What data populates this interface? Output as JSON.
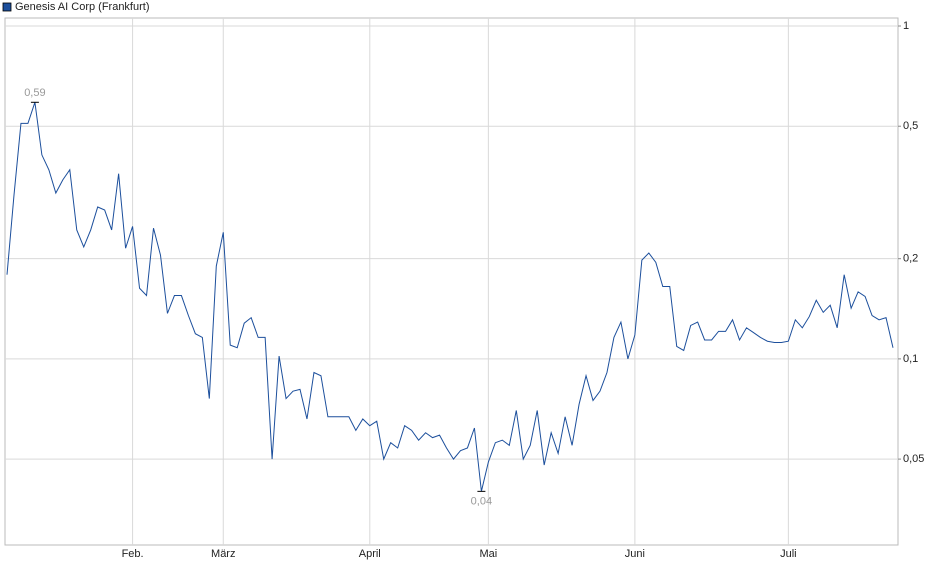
{
  "chart_data": {
    "type": "line",
    "log_scale": true,
    "grid": true,
    "legend": "top-left",
    "ylim": [
      0.0276,
      1.057
    ],
    "yticks": [
      1,
      {
        "value": 0.5,
        "label": "0,5"
      },
      {
        "value": 0.2,
        "label": "0,2"
      },
      {
        "value": 0.1,
        "label": "0,1"
      },
      {
        "value": 0.05,
        "label": "0,05"
      }
    ],
    "categories": [
      null,
      null,
      null,
      null,
      null,
      null,
      null,
      null,
      null,
      null,
      null,
      null,
      null,
      null,
      null,
      null,
      null,
      null,
      "Feb.",
      null,
      null,
      null,
      null,
      null,
      null,
      null,
      null,
      null,
      null,
      null,
      null,
      "März",
      null,
      null,
      null,
      null,
      null,
      null,
      null,
      null,
      null,
      null,
      null,
      null,
      null,
      null,
      null,
      null,
      null,
      null,
      null,
      null,
      "April",
      null,
      null,
      null,
      null,
      null,
      null,
      null,
      null,
      null,
      null,
      null,
      null,
      null,
      null,
      null,
      null,
      "Mai",
      null,
      null,
      null,
      null,
      null,
      null,
      null,
      null,
      null,
      null,
      null,
      null,
      null,
      null,
      null,
      null,
      null,
      null,
      null,
      null,
      "Juni",
      null,
      null,
      null,
      null,
      null,
      null,
      null,
      null,
      null,
      null,
      null,
      null,
      null,
      null,
      null,
      null,
      null,
      null,
      null,
      null,
      null,
      "Juli",
      null,
      null,
      null,
      null,
      null,
      null,
      null,
      null,
      null,
      null,
      null,
      null,
      null,
      null,
      null
    ],
    "series": [
      {
        "name": "Genesis AI Corp (Frankfurt)",
        "color": "#1c4f9c",
        "values": [
          0.179,
          0.31,
          0.51,
          0.51,
          0.59,
          0.41,
          0.37,
          0.315,
          0.345,
          0.37,
          0.244,
          0.217,
          0.244,
          0.286,
          0.28,
          0.244,
          0.36,
          0.215,
          0.25,
          0.163,
          0.155,
          0.247,
          0.205,
          0.137,
          0.155,
          0.155,
          0.135,
          0.119,
          0.116,
          0.076,
          0.19,
          0.24,
          0.11,
          0.108,
          0.128,
          0.133,
          0.116,
          0.116,
          0.05,
          0.102,
          0.076,
          0.08,
          0.081,
          0.066,
          0.091,
          0.089,
          0.067,
          0.067,
          0.067,
          0.067,
          0.061,
          0.066,
          0.063,
          0.065,
          0.05,
          0.056,
          0.054,
          0.063,
          0.061,
          0.057,
          0.06,
          0.058,
          0.059,
          0.054,
          0.05,
          0.053,
          0.054,
          0.062,
          0.04,
          0.049,
          0.056,
          0.057,
          0.055,
          0.07,
          0.05,
          0.055,
          0.07,
          0.048,
          0.06,
          0.052,
          0.067,
          0.055,
          0.073,
          0.089,
          0.075,
          0.08,
          0.091,
          0.116,
          0.129,
          0.1,
          0.118,
          0.198,
          0.208,
          0.195,
          0.165,
          0.165,
          0.109,
          0.106,
          0.126,
          0.129,
          0.114,
          0.114,
          0.121,
          0.121,
          0.131,
          0.114,
          0.124,
          0.12,
          0.116,
          0.113,
          0.112,
          0.112,
          0.113,
          0.131,
          0.124,
          0.134,
          0.15,
          0.138,
          0.145,
          0.124,
          0.179,
          0.142,
          0.159,
          0.154,
          0.135,
          0.131,
          0.133,
          0.108
        ],
        "value_labels": [
          null,
          null,
          null,
          null,
          "0,59",
          null,
          null,
          null,
          null,
          null,
          null,
          null,
          null,
          null,
          null,
          null,
          null,
          null,
          null,
          null,
          null,
          null,
          null,
          null,
          null,
          null,
          null,
          null,
          null,
          null,
          null,
          null,
          null,
          null,
          null,
          null,
          null,
          null,
          null,
          null,
          null,
          null,
          null,
          null,
          null,
          null,
          null,
          null,
          null,
          null,
          null,
          null,
          null,
          null,
          null,
          null,
          null,
          null,
          null,
          null,
          null,
          null,
          null,
          null,
          null,
          null,
          null,
          null,
          "0,04",
          null,
          null,
          null,
          null,
          null,
          null,
          null,
          null,
          null,
          null,
          null,
          null,
          null,
          null,
          null,
          null,
          null,
          null,
          null,
          null,
          null,
          null,
          null,
          null,
          null,
          null,
          null,
          null,
          null,
          null,
          null,
          null,
          null,
          null,
          null,
          null,
          null,
          null,
          null,
          null,
          null,
          null,
          null,
          null,
          null,
          null,
          null,
          null,
          null,
          null,
          null,
          null,
          null,
          null,
          null,
          null,
          null,
          null,
          null
        ]
      }
    ]
  }
}
